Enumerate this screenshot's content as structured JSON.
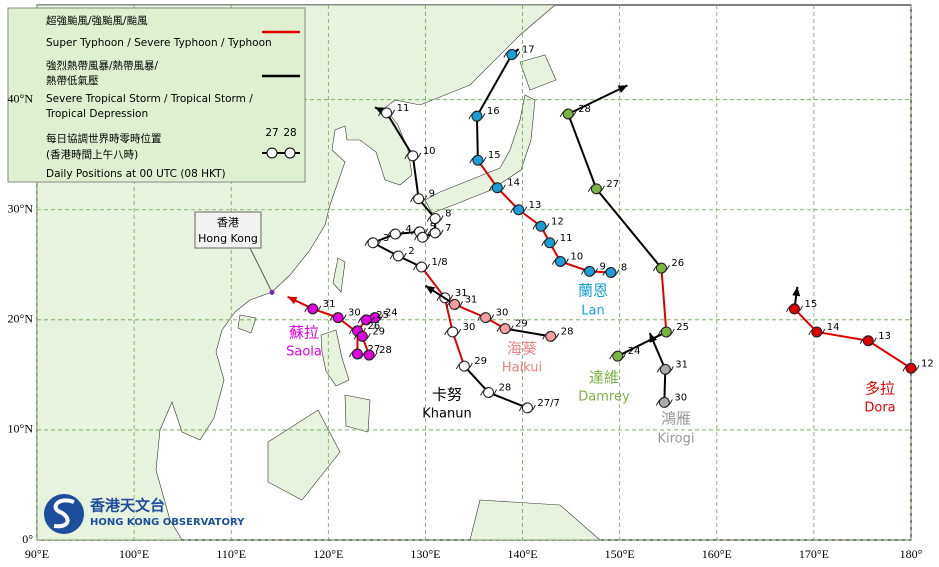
{
  "map": {
    "xlim": [
      90,
      180
    ],
    "ylim": [
      0,
      48.6
    ],
    "xticks": [
      {
        "value": 90,
        "label": "90°E"
      },
      {
        "value": 100,
        "label": "100°E"
      },
      {
        "value": 110,
        "label": "110°E"
      },
      {
        "value": 120,
        "label": "120°E"
      },
      {
        "value": 130,
        "label": "130°E"
      },
      {
        "value": 140,
        "label": "140°E"
      },
      {
        "value": 150,
        "label": "150°E"
      },
      {
        "value": 160,
        "label": "160°E"
      },
      {
        "value": 170,
        "label": "170°E"
      },
      {
        "value": 180,
        "label": "180°"
      }
    ],
    "yticks": [
      {
        "value": 0,
        "label": "0°"
      },
      {
        "value": 10,
        "label": "10°N"
      },
      {
        "value": 20,
        "label": "20°N"
      },
      {
        "value": 30,
        "label": "30°N"
      },
      {
        "value": 40,
        "label": "40°N"
      }
    ]
  },
  "legend": {
    "typhoon_zh": "超強颱風/強颱風/颱風",
    "typhoon_en": "Super Typhoon / Severe Typhoon / Typhoon",
    "typhoon_color": "#e00000",
    "storm_zh_1": "強烈熱帶風暴/熱帶風暴/",
    "storm_zh_2": "熱帶低氣壓",
    "storm_en_1": "Severe Tropical Storm / Tropical Storm /",
    "storm_en_2": "Tropical Depression",
    "storm_color": "#000000",
    "daily_zh_1": "每日協調世界時零時位置",
    "daily_zh_2": "(香港時間上午八時)",
    "daily_en": "Daily Positions at 00 UTC (08 HKT)",
    "sample_labels": [
      "27",
      "28"
    ]
  },
  "hong_kong": {
    "zh": "香港",
    "en": "Hong Kong",
    "lon": 114.2,
    "lat": 22.5
  },
  "logo": {
    "zh": "香港天文台",
    "en": "HONG KONG OBSERVATORY"
  },
  "storms": [
    {
      "name_zh": "蘇拉",
      "name_en": "Saola",
      "color": "#e000e0",
      "marker": "#e000e0",
      "points": [
        {
          "label": "24",
          "lon": 124.8,
          "lat": 20.2,
          "line": "#e00000"
        },
        {
          "label": "25",
          "lon": 123.9,
          "lat": 20.0,
          "line": "#e00000"
        },
        {
          "label": "26",
          "lon": 123.0,
          "lat": 19.0,
          "line": "#e00000"
        },
        {
          "label": "27",
          "lon": 123.0,
          "lat": 16.9,
          "line": "#e00000"
        },
        {
          "label": "28",
          "lon": 124.2,
          "lat": 16.8,
          "line": "#e00000"
        },
        {
          "label": "29",
          "lon": 123.5,
          "lat": 18.5,
          "line": "#e00000"
        },
        {
          "label": "30",
          "lon": 121.0,
          "lat": 20.2,
          "line": "#e00000"
        },
        {
          "label": "31",
          "lon": 118.4,
          "lat": 21.0,
          "line": "#e00000"
        }
      ],
      "end": {
        "lon": 115.8,
        "lat": 22.1
      }
    },
    {
      "name_zh": "卡努",
      "name_en": "Khanun",
      "color": "#000000",
      "marker": "#ffffff",
      "points": [
        {
          "label": "27/7",
          "lon": 140.5,
          "lat": 12.0,
          "line": "#000000"
        },
        {
          "label": "28",
          "lon": 136.5,
          "lat": 13.4,
          "line": "#000000"
        },
        {
          "label": "29",
          "lon": 134.0,
          "lat": 15.8,
          "line": "#e00000"
        },
        {
          "label": "30",
          "lon": 132.8,
          "lat": 18.9,
          "line": "#e00000"
        },
        {
          "label": "31",
          "lon": 132.0,
          "lat": 22.0,
          "line": "#e00000"
        },
        {
          "label": "1/8",
          "lon": 129.6,
          "lat": 24.8,
          "line": "#000000"
        },
        {
          "label": "2",
          "lon": 127.2,
          "lat": 25.8,
          "line": "#000000"
        },
        {
          "label": "3",
          "lon": 124.6,
          "lat": 27.0,
          "line": "#000000"
        },
        {
          "label": "4",
          "lon": 126.9,
          "lat": 27.8,
          "line": "#000000"
        },
        {
          "label": "5",
          "lon": 129.4,
          "lat": 28.0,
          "line": "#000000"
        },
        {
          "label": "6",
          "lon": 129.7,
          "lat": 27.5,
          "line": "#000000"
        },
        {
          "label": "7",
          "lon": 131.0,
          "lat": 27.9,
          "line": "#000000"
        },
        {
          "label": "8",
          "lon": 131.0,
          "lat": 29.2,
          "line": "#000000"
        },
        {
          "label": "9",
          "lon": 129.3,
          "lat": 31.0,
          "line": "#000000"
        },
        {
          "label": "10",
          "lon": 128.7,
          "lat": 34.9,
          "line": "#000000"
        },
        {
          "label": "11",
          "lon": 126.0,
          "lat": 38.8,
          "line": "#000000"
        }
      ],
      "end": {
        "lon": 124.8,
        "lat": 39.3
      }
    },
    {
      "name_zh": "海葵",
      "name_en": "Haikui",
      "color": "#f08080",
      "marker": "#f4a0a0",
      "points": [
        {
          "label": "28",
          "lon": 142.9,
          "lat": 18.5,
          "line": "#000000"
        },
        {
          "label": "29",
          "lon": 138.2,
          "lat": 19.2,
          "line": "#e00000"
        },
        {
          "label": "30",
          "lon": 136.2,
          "lat": 20.2,
          "line": "#e00000"
        },
        {
          "label": "31",
          "lon": 133.0,
          "lat": 21.4,
          "line": "#000000"
        }
      ],
      "end": {
        "lon": 130.0,
        "lat": 23.1
      }
    },
    {
      "name_zh": "蘭恩",
      "name_en": "Lan",
      "color": "#1a9ed8",
      "marker": "#1a9ed8",
      "points": [
        {
          "label": "8",
          "lon": 149.1,
          "lat": 24.3,
          "line": "#e00000"
        },
        {
          "label": "9",
          "lon": 146.9,
          "lat": 24.4,
          "line": "#e00000"
        },
        {
          "label": "10",
          "lon": 143.9,
          "lat": 25.3,
          "line": "#e00000"
        },
        {
          "label": "11",
          "lon": 142.8,
          "lat": 27.0,
          "line": "#e00000"
        },
        {
          "label": "12",
          "lon": 141.9,
          "lat": 28.5,
          "line": "#e00000"
        },
        {
          "label": "13",
          "lon": 139.6,
          "lat": 30.0,
          "line": "#e00000"
        },
        {
          "label": "14",
          "lon": 137.4,
          "lat": 32.0,
          "line": "#e00000"
        },
        {
          "label": "15",
          "lon": 135.4,
          "lat": 34.5,
          "line": "#000000"
        },
        {
          "label": "16",
          "lon": 135.3,
          "lat": 38.5,
          "line": "#000000"
        },
        {
          "label": "17",
          "lon": 138.9,
          "lat": 44.1,
          "line": "#000000"
        }
      ],
      "end": {
        "lon": 139.6,
        "lat": 44.6
      }
    },
    {
      "name_zh": "達維",
      "name_en": "Damrey",
      "color": "#7cb342",
      "marker": "#7cb342",
      "points": [
        {
          "label": "24",
          "lon": 149.8,
          "lat": 16.7,
          "line": "#000000"
        },
        {
          "label": "25",
          "lon": 154.8,
          "lat": 18.9,
          "line": "#e00000"
        },
        {
          "label": "26",
          "lon": 154.3,
          "lat": 24.7,
          "line": "#000000"
        },
        {
          "label": "27",
          "lon": 147.6,
          "lat": 31.9,
          "line": "#000000"
        },
        {
          "label": "28",
          "lon": 144.7,
          "lat": 38.7,
          "line": "#000000"
        }
      ],
      "end": {
        "lon": 150.8,
        "lat": 41.3
      }
    },
    {
      "name_zh": "鴻雁",
      "name_en": "Kirogi",
      "color": "#999999",
      "marker": "#aaaaaa",
      "points": [
        {
          "label": "30",
          "lon": 154.6,
          "lat": 12.5,
          "line": "#000000"
        },
        {
          "label": "31",
          "lon": 154.7,
          "lat": 15.5,
          "line": "#000000"
        }
      ],
      "end": {
        "lon": 153.1,
        "lat": 18.8
      }
    },
    {
      "name_zh": "多拉",
      "name_en": "Dora",
      "color": "#e00000",
      "marker": "#e00000",
      "points": [
        {
          "label": "12",
          "lon": 180.0,
          "lat": 15.6,
          "line": "#e00000"
        },
        {
          "label": "13",
          "lon": 175.6,
          "lat": 18.1,
          "line": "#e00000"
        },
        {
          "label": "14",
          "lon": 170.3,
          "lat": 18.9,
          "line": "#e00000"
        },
        {
          "label": "15",
          "lon": 168.0,
          "lat": 21.0,
          "line": "#000000"
        }
      ],
      "end": {
        "lon": 168.3,
        "lat": 23.0
      }
    }
  ]
}
